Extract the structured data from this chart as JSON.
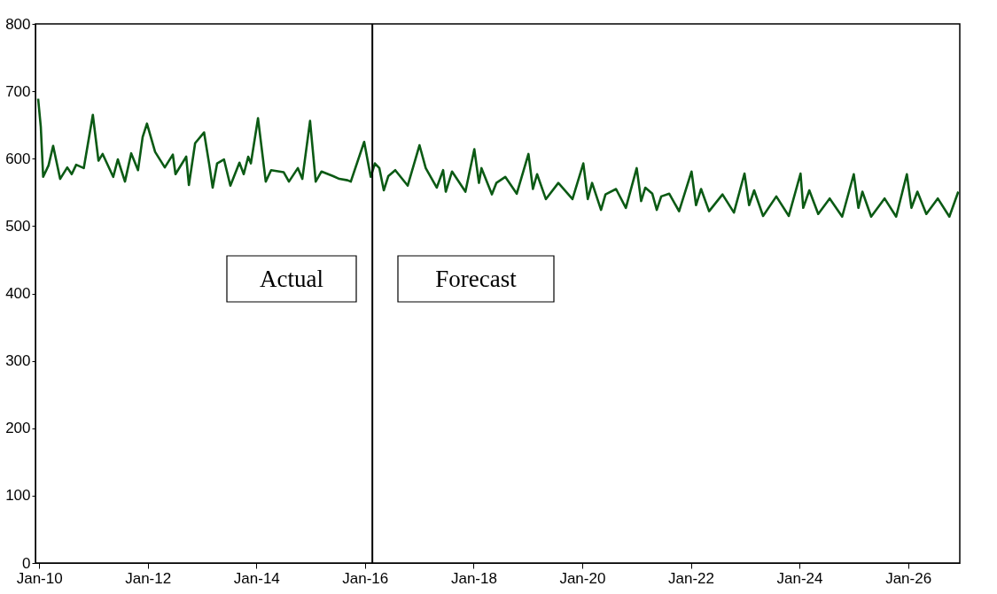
{
  "chart_data": {
    "type": "line",
    "x": [
      "2009-12-25",
      "2010-01-12",
      "2010-01-28",
      "2010-03-05",
      "2010-04-05",
      "2010-05-22",
      "2010-07-09",
      "2010-08-08",
      "2010-09-07",
      "2010-10-28",
      "2010-12-28",
      "2011-02-04",
      "2011-03-04",
      "2011-05-14",
      "2011-06-14",
      "2011-08-01",
      "2011-09-12",
      "2011-10-28",
      "2011-11-28",
      "2011-12-27",
      "2012-02-20",
      "2012-04-25",
      "2012-06-18",
      "2012-07-06",
      "2012-09-16",
      "2012-10-04",
      "2012-11-15",
      "2013-01-14",
      "2013-02-19",
      "2013-03-13",
      "2013-04-12",
      "2013-05-28",
      "2013-07-10",
      "2013-09-09",
      "2013-10-08",
      "2013-11-07",
      "2013-11-25",
      "2014-01-12",
      "2014-03-05",
      "2014-04-10",
      "2014-07-03",
      "2014-08-08",
      "2014-10-07",
      "2014-11-06",
      "2014-12-28",
      "2015-02-04",
      "2015-03-15",
      "2015-06-02",
      "2015-07-13",
      "2015-09-06",
      "2015-09-28",
      "2015-12-27",
      "2016-02-09",
      "2016-03-08",
      "2016-04-07",
      "2016-05-07",
      "2016-06-06",
      "2016-07-23",
      "2016-10-15",
      "2017-01-02",
      "2017-02-13",
      "2017-04-28",
      "2017-06-10",
      "2017-06-28",
      "2017-08-09",
      "2017-11-07",
      "2018-01-06",
      "2018-02-06",
      "2018-02-23",
      "2018-05-04",
      "2018-06-03",
      "2018-08-02",
      "2018-10-18",
      "2019-01-05",
      "2019-02-04",
      "2019-03-04",
      "2019-05-02",
      "2019-07-25",
      "2019-10-28",
      "2020-01-09",
      "2020-02-08",
      "2020-03-08",
      "2020-05-07",
      "2020-06-06",
      "2020-08-16",
      "2020-10-21",
      "2021-01-02",
      "2021-02-01",
      "2021-03-01",
      "2021-04-17",
      "2021-05-17",
      "2021-06-16",
      "2021-08-09",
      "2021-10-14",
      "2022-01-06",
      "2022-02-05",
      "2022-03-11",
      "2022-05-04",
      "2022-08-02",
      "2022-10-18",
      "2022-12-28",
      "2023-01-28",
      "2023-03-03",
      "2023-05-02",
      "2023-07-30",
      "2023-10-22",
      "2024-01-09",
      "2024-01-27",
      "2024-03-08",
      "2024-05-07",
      "2024-07-23",
      "2024-10-15",
      "2025-01-01",
      "2025-02-01",
      "2025-02-28",
      "2025-04-28",
      "2025-07-27",
      "2025-10-13",
      "2025-12-24",
      "2026-01-24",
      "2026-03-05",
      "2026-05-04",
      "2026-07-20",
      "2026-10-06",
      "2026-12-05"
    ],
    "series": [
      {
        "color": "#0b5a14",
        "values": [
          689,
          647,
          573,
          590,
          619,
          570,
          587,
          577,
          591,
          586,
          665,
          597,
          607,
          573,
          599,
          566,
          608,
          583,
          632,
          652,
          610,
          587,
          606,
          577,
          603,
          561,
          623,
          639,
          590,
          557,
          593,
          599,
          560,
          594,
          577,
          603,
          593,
          660,
          566,
          583,
          580,
          566,
          586,
          570,
          656,
          566,
          581,
          574,
          570,
          568,
          566,
          625,
          573,
          593,
          586,
          553,
          574,
          583,
          560,
          620,
          586,
          557,
          583,
          551,
          581,
          551,
          614,
          564,
          586,
          547,
          564,
          573,
          548,
          607,
          555,
          577,
          540,
          564,
          540,
          593,
          540,
          564,
          524,
          547,
          555,
          527,
          586,
          537,
          557,
          548,
          524,
          544,
          548,
          522,
          581,
          531,
          555,
          522,
          547,
          520,
          578,
          531,
          553,
          515,
          544,
          515,
          578,
          527,
          553,
          518,
          541,
          514,
          577,
          527,
          551,
          514,
          541,
          514,
          577,
          527,
          551,
          518,
          541,
          514,
          551
        ]
      }
    ],
    "xlim": [
      "2009-12-07",
      "2026-12-15"
    ],
    "xticks": [
      {
        "value": "2010-01-01",
        "label": "Jan-10"
      },
      {
        "value": "2012-01-01",
        "label": "Jan-12"
      },
      {
        "value": "2014-01-01",
        "label": "Jan-14"
      },
      {
        "value": "2016-01-01",
        "label": "Jan-16"
      },
      {
        "value": "2018-01-01",
        "label": "Jan-18"
      },
      {
        "value": "2020-01-01",
        "label": "Jan-20"
      },
      {
        "value": "2022-01-01",
        "label": "Jan-22"
      },
      {
        "value": "2024-01-01",
        "label": "Jan-24"
      },
      {
        "value": "2026-01-01",
        "label": "Jan-26"
      }
    ],
    "ylim": [
      0,
      800
    ],
    "yticks": [
      0,
      100,
      200,
      300,
      400,
      500,
      600,
      700,
      800
    ],
    "ref_lines": [
      {
        "axis": "x",
        "value": "2016-02-20",
        "color": "#000000"
      }
    ],
    "annotations": [
      "Actual",
      "Forecast"
    ],
    "grid": false,
    "marker": "none",
    "line_style": "solid"
  }
}
